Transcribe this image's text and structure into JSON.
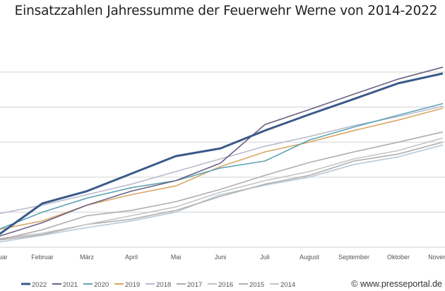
{
  "chart_data": {
    "type": "line",
    "title": "Einsatzzahlen Jahressumme der Feuerwehr Werne von 2014-2022",
    "xlabel": "",
    "ylabel": "",
    "categories": [
      "Januar",
      "Februar",
      "März",
      "April",
      "Mai",
      "Juni",
      "Juli",
      "August",
      "September",
      "Oktober",
      "November"
    ],
    "ylim": [
      0,
      5
    ],
    "grid": true,
    "legend_position": "bottom",
    "note": "y-axis tick labels not visible in the image; values are approximate in gridline units",
    "series": [
      {
        "name": "2022",
        "color": "#3a5a8a",
        "width": 3,
        "values": [
          0.34,
          1.25,
          1.6,
          2.1,
          2.6,
          2.82,
          3.33,
          3.79,
          4.23,
          4.68,
          4.96
        ]
      },
      {
        "name": "2021",
        "color": "#6a6384",
        "width": 1.6,
        "values": [
          0.3,
          0.7,
          1.2,
          1.6,
          1.9,
          2.4,
          3.5,
          3.93,
          4.37,
          4.8,
          5.14
        ]
      },
      {
        "name": "2020",
        "color": "#5ea3b5",
        "width": 1.6,
        "values": [
          0.5,
          1.0,
          1.4,
          1.7,
          1.9,
          2.26,
          2.46,
          3.06,
          3.43,
          3.77,
          4.1
        ]
      },
      {
        "name": "2019",
        "color": "#d9a766",
        "width": 1.6,
        "values": [
          0.5,
          0.75,
          1.2,
          1.5,
          1.75,
          2.3,
          2.72,
          3.0,
          3.33,
          3.63,
          3.97
        ]
      },
      {
        "name": "2018",
        "color": "#b7bccb",
        "width": 1.6,
        "values": [
          0.95,
          1.2,
          1.5,
          1.8,
          2.16,
          2.52,
          2.88,
          3.16,
          3.47,
          3.73,
          4.03
        ]
      },
      {
        "name": "2017",
        "color": "#b5acae",
        "width": 1.6,
        "values": [
          0.2,
          0.5,
          0.9,
          1.05,
          1.3,
          1.65,
          2.05,
          2.42,
          2.72,
          3.0,
          3.29
        ]
      },
      {
        "name": "2016",
        "color": "#c4c4c4",
        "width": 1.6,
        "values": [
          0.24,
          0.4,
          0.65,
          0.9,
          1.15,
          1.57,
          1.9,
          2.16,
          2.52,
          2.76,
          3.12
        ]
      },
      {
        "name": "2015",
        "color": "#b0b0b0",
        "width": 1.6,
        "values": [
          0.2,
          0.36,
          0.65,
          0.8,
          1.05,
          1.45,
          1.8,
          2.05,
          2.46,
          2.66,
          3.0
        ]
      },
      {
        "name": "2014",
        "color": "#b9c9d6",
        "width": 1.6,
        "values": [
          0.14,
          0.34,
          0.56,
          0.75,
          1.0,
          1.5,
          1.77,
          2.0,
          2.36,
          2.58,
          2.92
        ]
      }
    ]
  },
  "watermark": "© www.presseportal.de"
}
